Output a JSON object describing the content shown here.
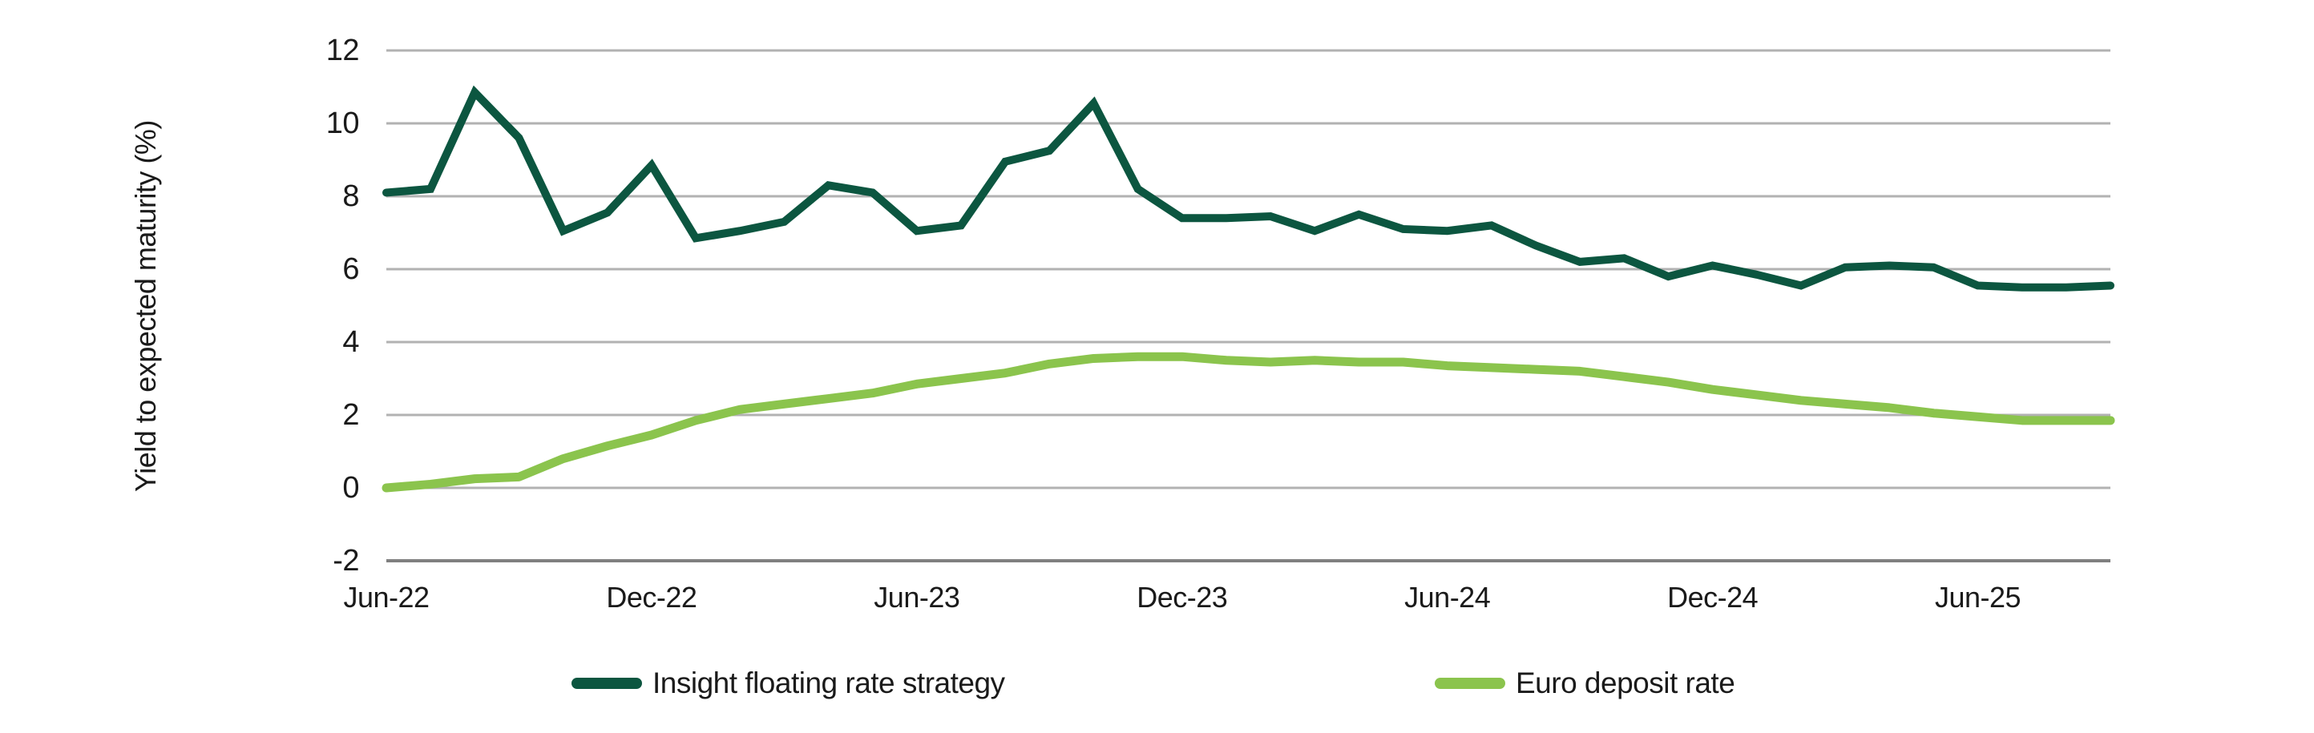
{
  "page": {
    "background": "#FFFFFF"
  },
  "chart_data": {
    "type": "line",
    "title": "",
    "xlabel": "",
    "ylabel": "Yield to expected maturity (%)",
    "ylim": [
      -2,
      12
    ],
    "yticks": [
      12,
      10,
      8,
      6,
      4,
      2,
      0,
      -2
    ],
    "grid": "horizontal gridlines only, bottom axis line darker",
    "legend_position": "bottom",
    "x": [
      "Jun-22",
      "Jul-22",
      "Aug-22",
      "Sep-22",
      "Oct-22",
      "Nov-22",
      "Dec-22",
      "Jan-23",
      "Feb-23",
      "Mar-23",
      "Apr-23",
      "May-23",
      "Jun-23",
      "Jul-23",
      "Aug-23",
      "Sep-23",
      "Oct-23",
      "Nov-23",
      "Dec-23",
      "Jan-24",
      "Feb-24",
      "Mar-24",
      "Apr-24",
      "May-24",
      "Jun-24",
      "Jul-24",
      "Aug-24",
      "Sep-24",
      "Oct-24",
      "Nov-24",
      "Dec-24",
      "Jan-25",
      "Feb-25",
      "Mar-25",
      "Apr-25",
      "May-25",
      "Jun-25",
      "Jul-25",
      "Aug-25",
      "Sep-25"
    ],
    "x_tick_labels": [
      "Jun-22",
      "Dec-22",
      "Jun-23",
      "Dec-23",
      "Jun-24",
      "Dec-24",
      "Jun-25"
    ],
    "x_tick_month_indices": [
      0,
      6,
      12,
      18,
      24,
      30,
      36
    ],
    "series": [
      {
        "name": "Insight floating rate strategy",
        "color": "#0C5640",
        "values": [
          8.1,
          8.2,
          10.85,
          9.6,
          7.05,
          7.55,
          8.85,
          6.85,
          7.05,
          7.3,
          8.3,
          8.1,
          7.05,
          7.2,
          8.95,
          9.25,
          10.55,
          8.2,
          7.4,
          7.4,
          7.45,
          7.05,
          7.5,
          7.1,
          7.05,
          7.2,
          6.65,
          6.2,
          6.3,
          5.8,
          6.1,
          5.85,
          5.55,
          6.05,
          6.1,
          6.05,
          5.55,
          5.5,
          5.5,
          5.55
        ]
      },
      {
        "name": "Euro deposit rate",
        "color": "#8BC44D",
        "values": [
          0,
          0.1,
          0.25,
          0.3,
          0.8,
          1.15,
          1.45,
          1.85,
          2.15,
          2.3,
          2.45,
          2.6,
          2.85,
          3.0,
          3.15,
          3.4,
          3.55,
          3.6,
          3.6,
          3.5,
          3.45,
          3.5,
          3.45,
          3.45,
          3.35,
          3.3,
          3.25,
          3.2,
          3.05,
          2.9,
          2.7,
          2.55,
          2.4,
          2.3,
          2.2,
          2.05,
          1.95,
          1.85,
          1.85,
          1.85
        ]
      }
    ],
    "axis_colors": {
      "gridline": "#B2B2B2",
      "axis_line": "#808080",
      "text": "#1A1A1A"
    }
  },
  "legend": {
    "items": [
      {
        "label": "Insight floating rate strategy",
        "color": "#0C5640"
      },
      {
        "label": "Euro deposit rate",
        "color": "#8BC44D"
      }
    ]
  }
}
